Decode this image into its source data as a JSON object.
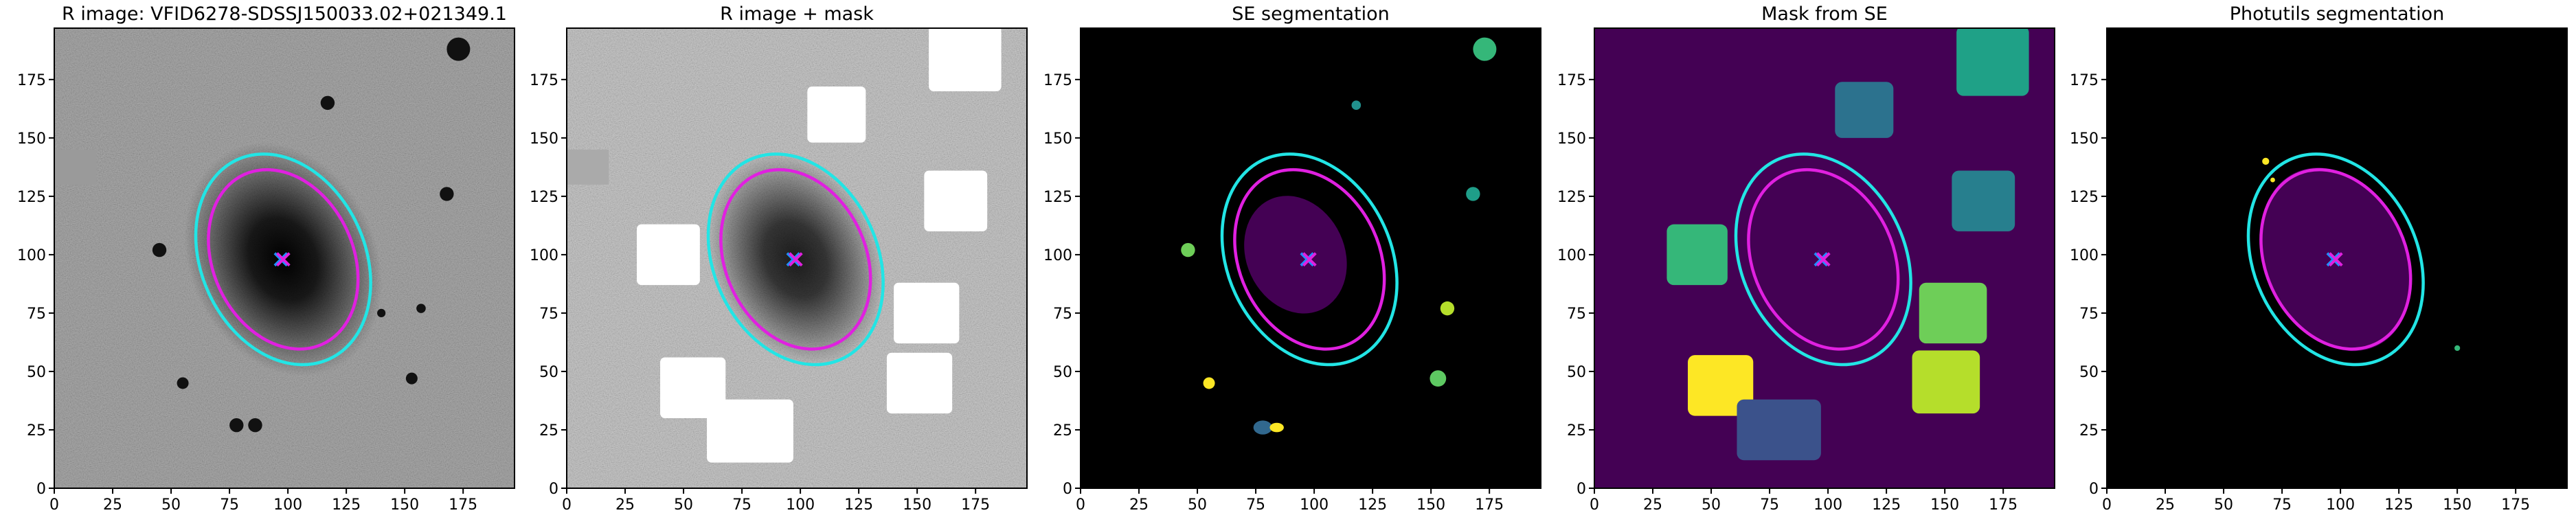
{
  "chart_data": [
    {
      "type": "image",
      "title": "R image: VFID6278-SDSSJ150033.02+021349.1",
      "background": "#808080",
      "xlim": [
        0,
        197
      ],
      "ylim": [
        0,
        197
      ],
      "xticks": [
        0,
        25,
        50,
        75,
        100,
        125,
        150,
        175
      ],
      "yticks": [
        0,
        25,
        50,
        75,
        100,
        125,
        150,
        175
      ],
      "ellipses": [
        {
          "color": "#22e5e5",
          "center": [
            98,
            98
          ],
          "width": 94,
          "height": 70,
          "angle": 115
        },
        {
          "color": "#e020e0",
          "center": [
            98,
            98
          ],
          "width": 80,
          "height": 60,
          "angle": 115
        }
      ],
      "markers": [
        {
          "color": "#1e90ff",
          "x": 97,
          "y": 98
        },
        {
          "color": "#e020e0",
          "x": 98,
          "y": 98
        }
      ]
    },
    {
      "type": "image",
      "title": "R image + mask",
      "background": "#b4b4b4",
      "xlim": [
        0,
        197
      ],
      "ylim": [
        0,
        197
      ],
      "xticks": [
        0,
        25,
        50,
        75,
        100,
        125,
        150,
        175
      ],
      "yticks": [
        0,
        25,
        50,
        75,
        100,
        125,
        150,
        175
      ],
      "ellipses": [
        {
          "color": "#22e5e5",
          "center": [
            98,
            98
          ],
          "width": 94,
          "height": 70,
          "angle": 115
        },
        {
          "color": "#e020e0",
          "center": [
            98,
            98
          ],
          "width": 80,
          "height": 60,
          "angle": 115
        }
      ],
      "markers": [
        {
          "color": "#1e90ff",
          "x": 97,
          "y": 98
        },
        {
          "color": "#e020e0",
          "x": 98,
          "y": 98
        }
      ]
    },
    {
      "type": "image",
      "title": "SE segmentation",
      "background": "#000000",
      "xlim": [
        0,
        197
      ],
      "ylim": [
        0,
        197
      ],
      "xticks": [
        0,
        25,
        50,
        75,
        100,
        125,
        150,
        175
      ],
      "yticks": [
        0,
        25,
        50,
        75,
        100,
        125,
        150,
        175
      ],
      "ellipses": [
        {
          "color": "#22e5e5",
          "center": [
            98,
            98
          ],
          "width": 94,
          "height": 70,
          "angle": 115
        },
        {
          "color": "#e020e0",
          "center": [
            98,
            98
          ],
          "width": 80,
          "height": 60,
          "angle": 115
        }
      ],
      "markers": [
        {
          "color": "#1e90ff",
          "x": 97,
          "y": 98
        },
        {
          "color": "#e020e0",
          "x": 98,
          "y": 98
        }
      ]
    },
    {
      "type": "image",
      "title": "Mask from SE",
      "background": "#440154",
      "xlim": [
        0,
        197
      ],
      "ylim": [
        0,
        197
      ],
      "xticks": [
        0,
        25,
        50,
        75,
        100,
        125,
        150,
        175
      ],
      "yticks": [
        0,
        25,
        50,
        75,
        100,
        125,
        150,
        175
      ],
      "ellipses": [
        {
          "color": "#22e5e5",
          "center": [
            98,
            98
          ],
          "width": 94,
          "height": 70,
          "angle": 115
        },
        {
          "color": "#e020e0",
          "center": [
            98,
            98
          ],
          "width": 80,
          "height": 60,
          "angle": 115
        }
      ],
      "markers": [
        {
          "color": "#1e90ff",
          "x": 97,
          "y": 98
        },
        {
          "color": "#e020e0",
          "x": 98,
          "y": 98
        }
      ]
    },
    {
      "type": "image",
      "title": "Photutils segmentation",
      "background": "#000000",
      "xlim": [
        0,
        197
      ],
      "ylim": [
        0,
        197
      ],
      "xticks": [
        0,
        25,
        50,
        75,
        100,
        125,
        150,
        175
      ],
      "yticks": [
        0,
        25,
        50,
        75,
        100,
        125,
        150,
        175
      ],
      "ellipses": [
        {
          "color": "#22e5e5",
          "center": [
            98,
            98
          ],
          "width": 94,
          "height": 70,
          "angle": 115
        },
        {
          "color": "#e020e0",
          "center": [
            98,
            98
          ],
          "width": 80,
          "height": 60,
          "angle": 115
        }
      ],
      "markers": [
        {
          "color": "#1e90ff",
          "x": 97,
          "y": 98
        },
        {
          "color": "#e020e0",
          "x": 98,
          "y": 98
        }
      ]
    }
  ]
}
